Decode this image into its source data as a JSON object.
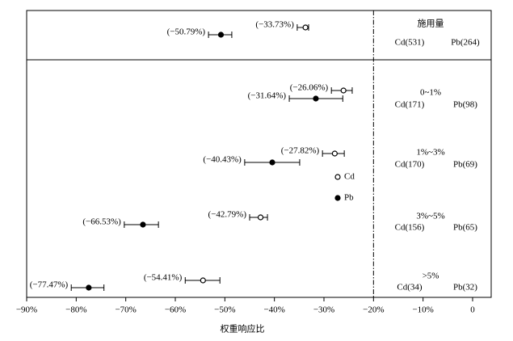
{
  "chart_data": {
    "type": "forest",
    "xlabel": "权重响应比",
    "xlim": [
      -90,
      0
    ],
    "xticks": [
      {
        "value": -90,
        "label": "−90%"
      },
      {
        "value": -80,
        "label": "−80%"
      },
      {
        "value": -70,
        "label": "−70%"
      },
      {
        "value": -60,
        "label": "−60%"
      },
      {
        "value": -50,
        "label": "−50%"
      },
      {
        "value": -40,
        "label": "−40%"
      },
      {
        "value": -30,
        "label": "−30%"
      },
      {
        "value": -20,
        "label": "−20%"
      },
      {
        "value": -10,
        "label": "−10%"
      },
      0
    ],
    "reference_line": -20,
    "groups": [
      {
        "label": "施用量",
        "counts": [
          "Cd(531)",
          "Pb(264)"
        ]
      },
      {
        "label": "0~1%",
        "counts": [
          "Cd(171)",
          "Pb(98)"
        ]
      },
      {
        "label": "1%~3%",
        "counts": [
          "Cd(170)",
          "Pb(69)"
        ]
      },
      {
        "label": "3%~5%",
        "counts": [
          "Cd(156)",
          "Pb(65)"
        ]
      },
      {
        "label": ">5%",
        "counts": [
          "Cd(34)",
          "Pb(32)"
        ]
      }
    ],
    "series": [
      {
        "name": "Cd",
        "marker": "open",
        "color": "#000000",
        "values": [
          -33.73,
          -26.06,
          -27.82,
          -42.79,
          -54.41
        ],
        "value_labels": [
          "(−33.73%)",
          "(−26.06%)",
          "(−27.82%)",
          "(−42.79%)",
          "(−54.41%)"
        ],
        "lower": [
          -35.4,
          -28.5,
          -30.3,
          -45.0,
          -58.0
        ],
        "upper": [
          -33.1,
          -24.3,
          -25.9,
          -41.4,
          -51.0
        ]
      },
      {
        "name": "Pb",
        "marker": "filled",
        "color": "#000000",
        "values": [
          -50.79,
          -31.64,
          -40.43,
          -66.53,
          -77.47
        ],
        "value_labels": [
          "(−50.79%)",
          "(−31.64%)",
          "(−40.43%)",
          "(−66.53%)",
          "(−77.47%)"
        ],
        "lower": [
          -53.3,
          -37.0,
          -46.0,
          -70.3,
          -81.0
        ],
        "upper": [
          -48.6,
          -26.2,
          -34.9,
          -63.4,
          -74.4
        ]
      }
    ]
  }
}
